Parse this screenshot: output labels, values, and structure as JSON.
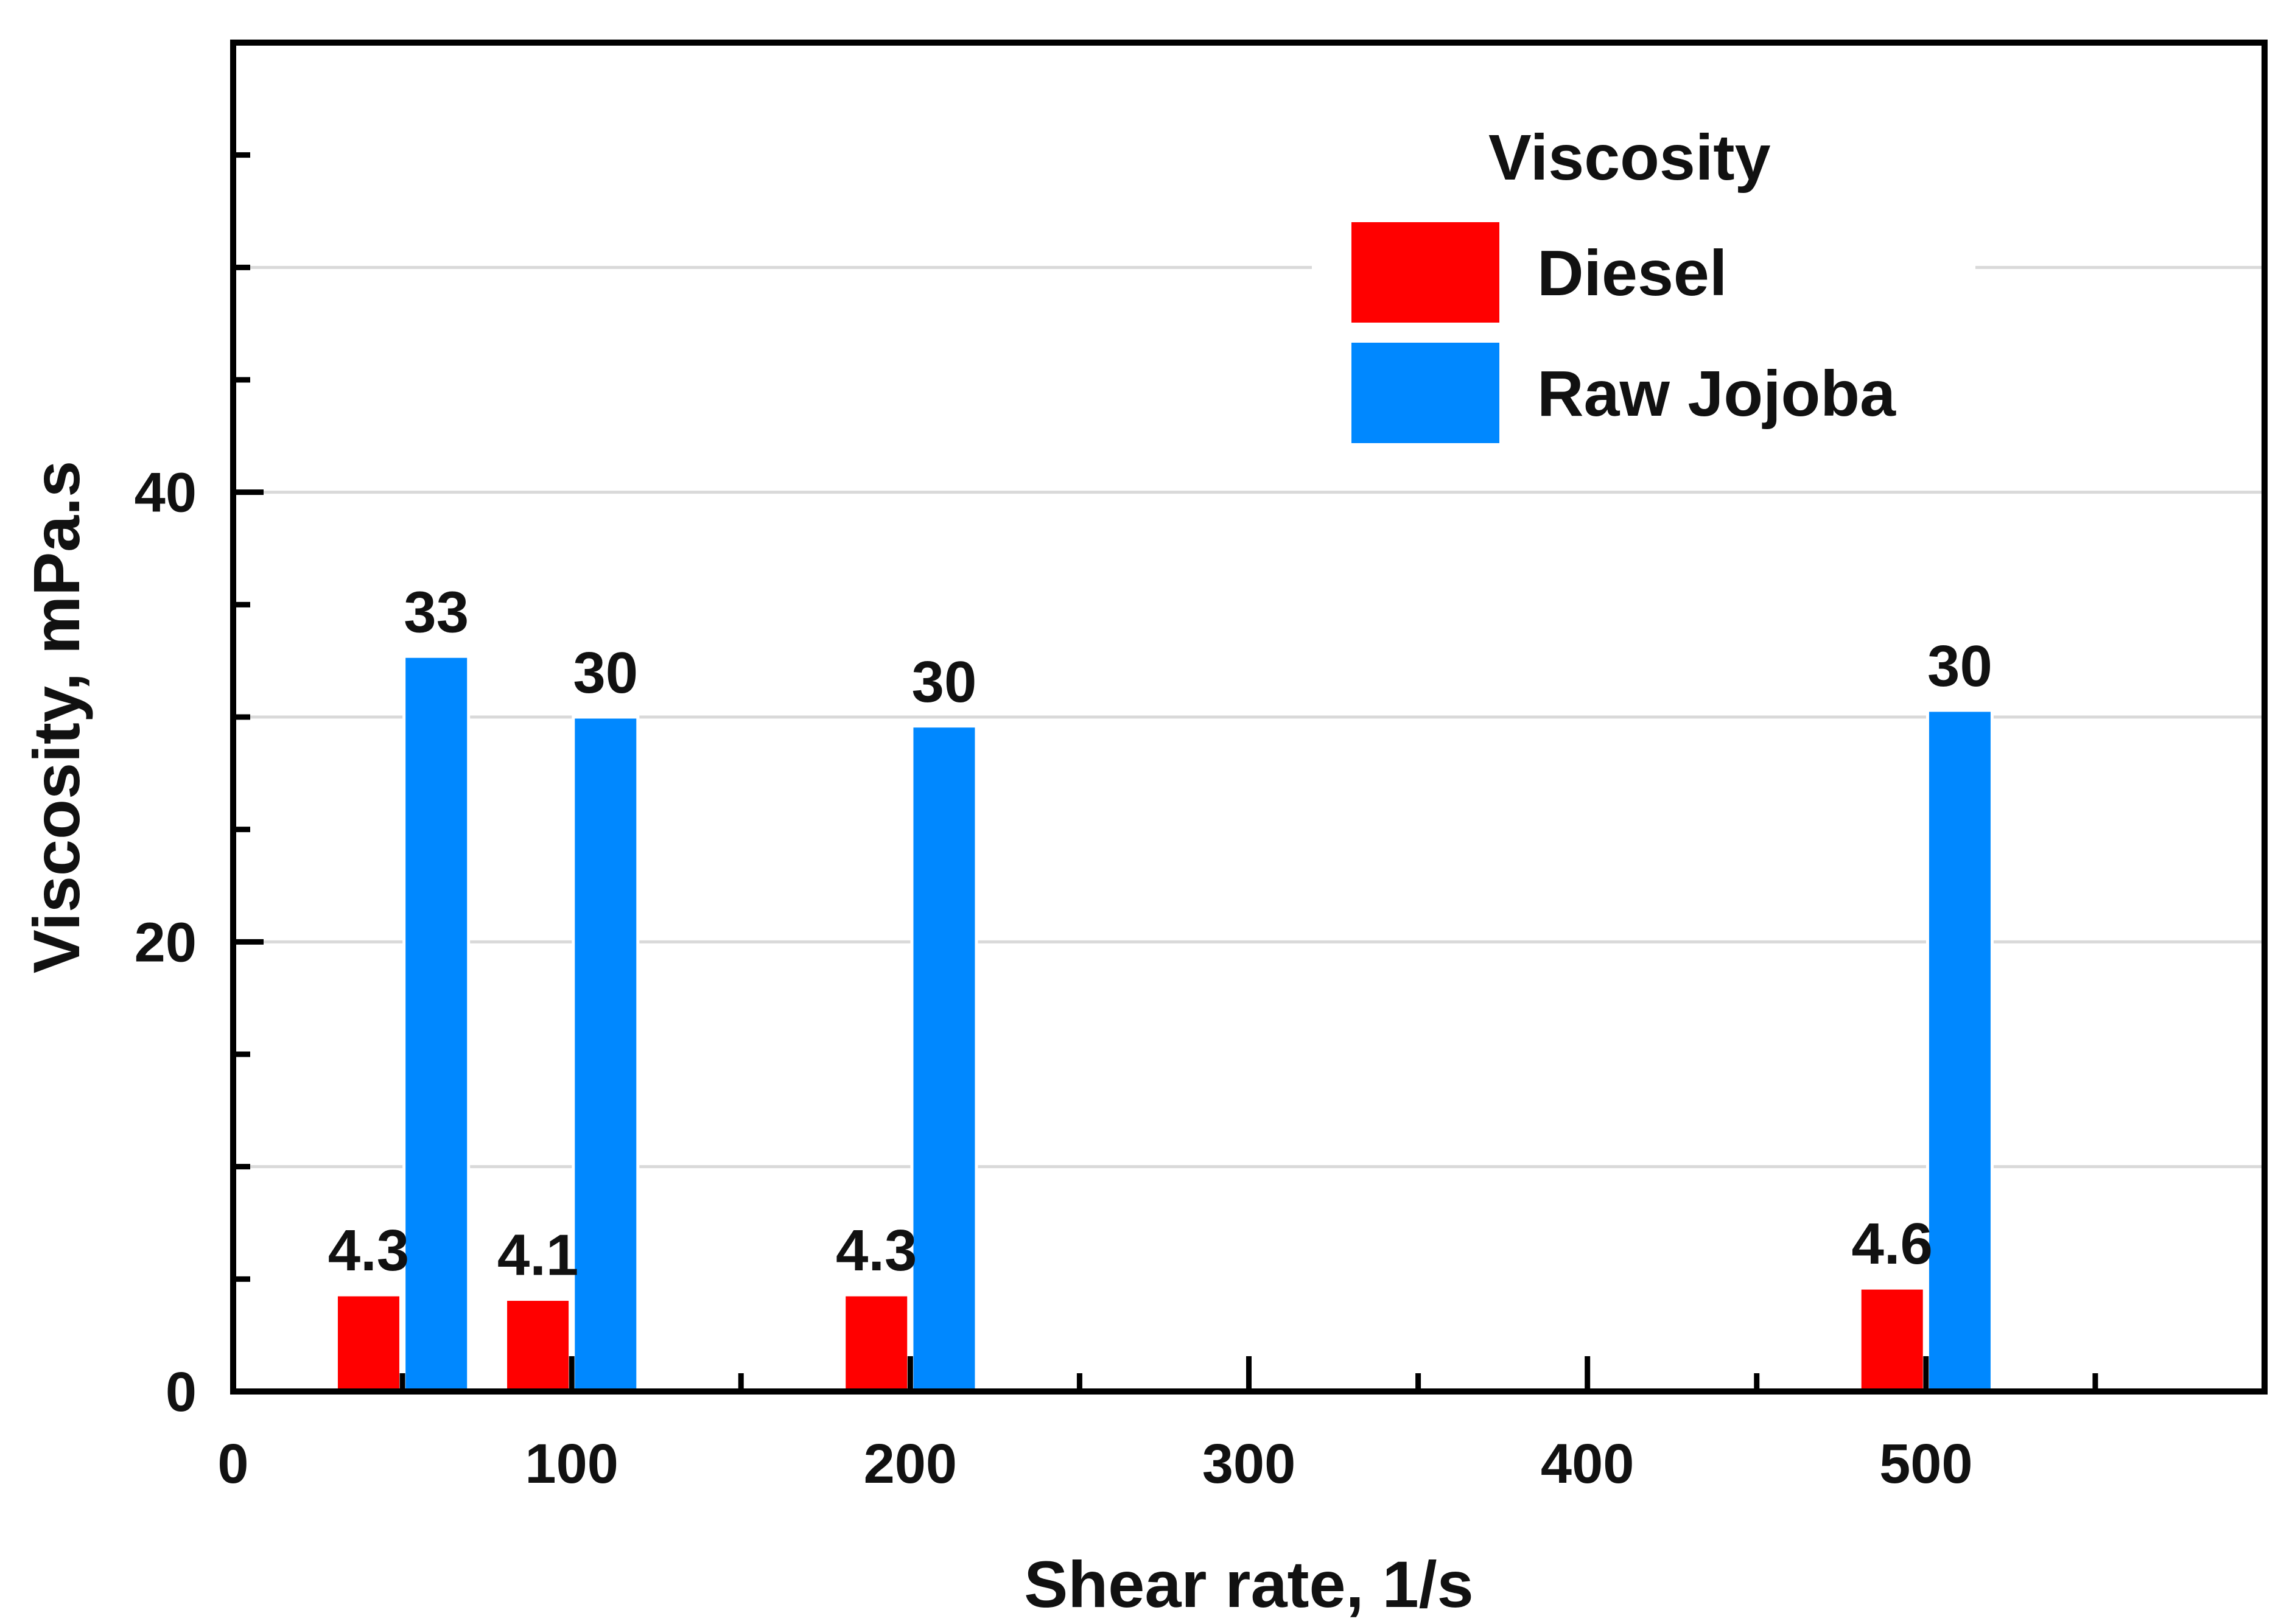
{
  "chart_data": {
    "type": "bar",
    "title": "",
    "xlabel": "Shear rate, 1/s",
    "ylabel": "Viscosity, mPa.s",
    "xlim": [
      0,
      600
    ],
    "ylim": [
      0,
      60
    ],
    "x_ticks": [
      0,
      100,
      200,
      300,
      400,
      500
    ],
    "x_tick_labels": [
      "0",
      "100",
      "200",
      "300",
      "400",
      "500"
    ],
    "y_ticks": [
      0,
      20,
      40
    ],
    "y_tick_labels": [
      "0",
      "20",
      "40"
    ],
    "grid": "horizontal",
    "legend": {
      "title": "Viscosity",
      "position": "top-right"
    },
    "series": [
      {
        "name": "Diesel",
        "color": "#ff0000",
        "points": [
          {
            "x": 40,
            "value": 4.3,
            "label": "4.3"
          },
          {
            "x": 90,
            "value": 4.1,
            "label": "4.1"
          },
          {
            "x": 190,
            "value": 4.3,
            "label": "4.3"
          },
          {
            "x": 490,
            "value": 4.6,
            "label": "4.6"
          }
        ]
      },
      {
        "name": "Raw Jojoba",
        "color": "#0088ff",
        "points": [
          {
            "x": 60,
            "value": 32.7,
            "label": "33"
          },
          {
            "x": 110,
            "value": 30.0,
            "label": "30"
          },
          {
            "x": 210,
            "value": 29.6,
            "label": "30"
          },
          {
            "x": 510,
            "value": 30.3,
            "label": "30"
          }
        ]
      }
    ]
  }
}
